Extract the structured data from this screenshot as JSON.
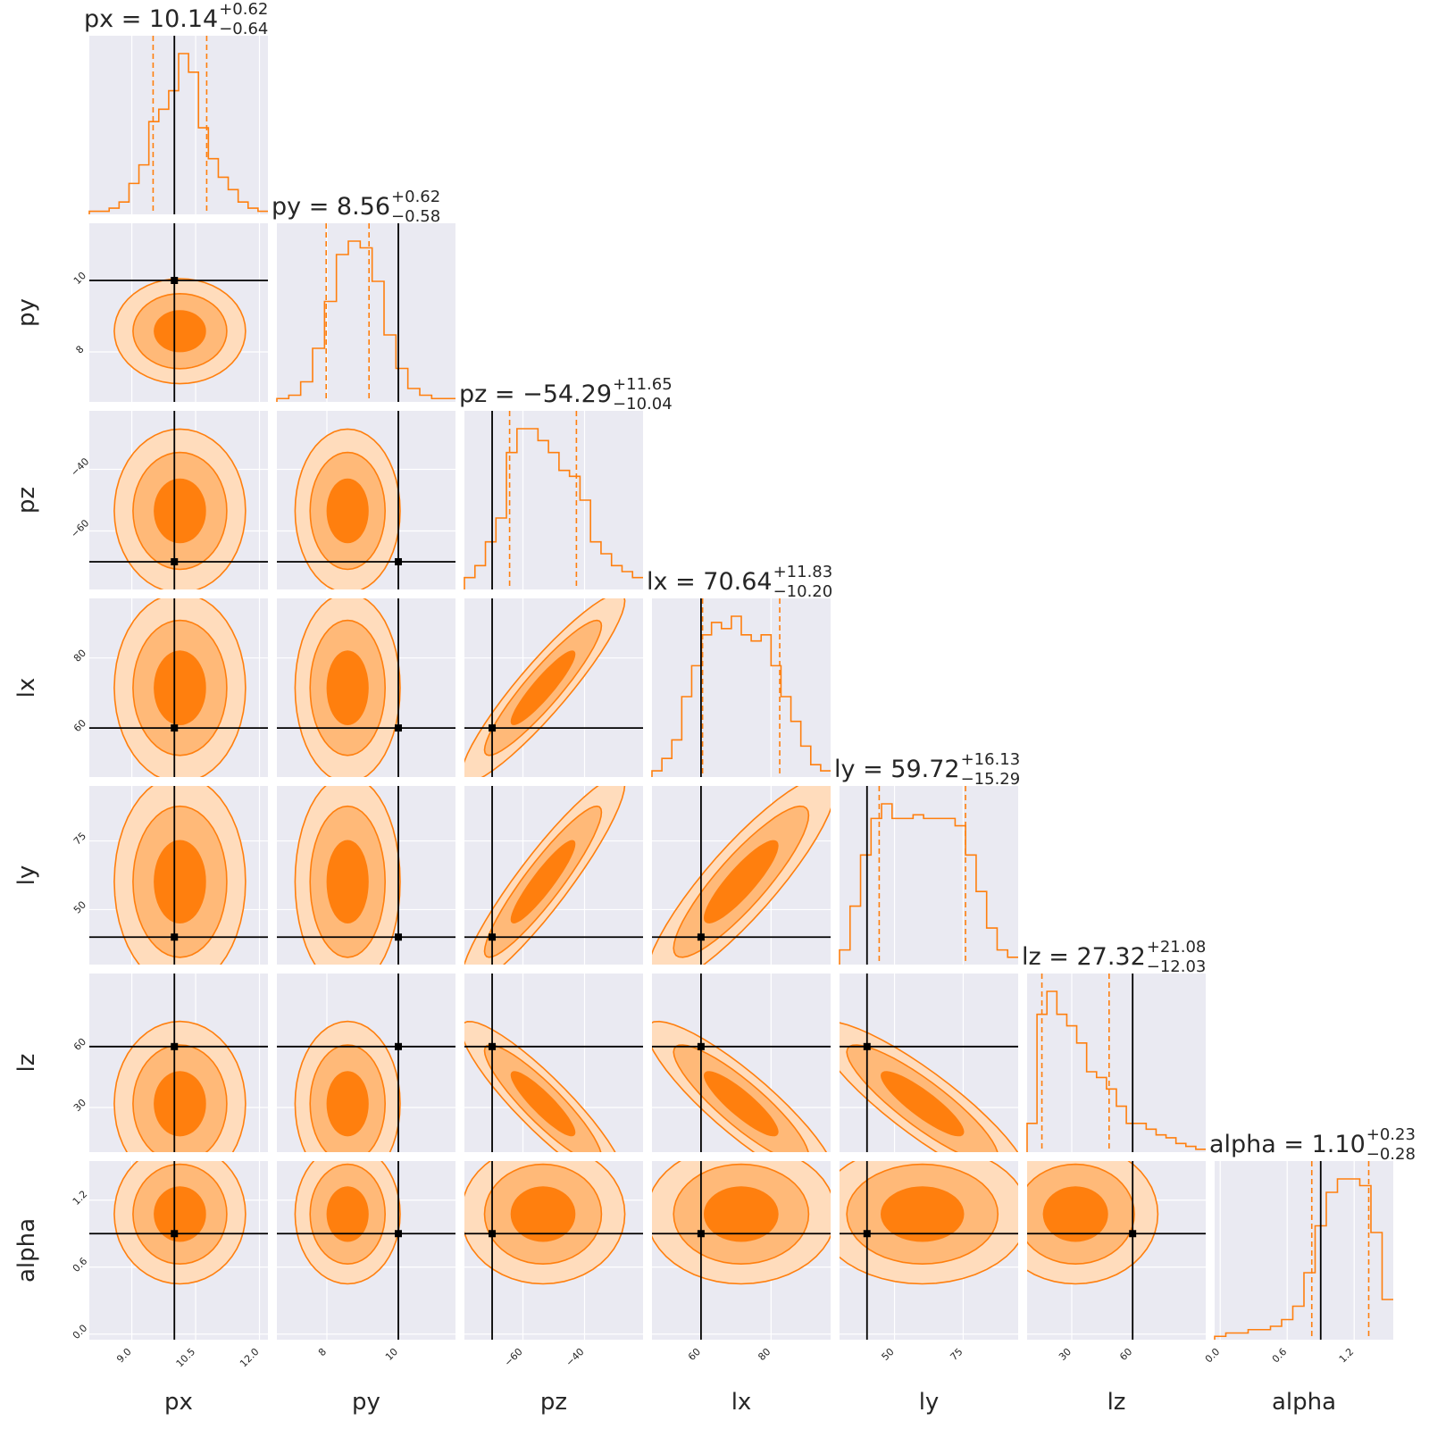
{
  "chart_data": {
    "type": "corner",
    "grid": true,
    "colors": {
      "line": "#ff7f0e",
      "level_fills": [
        "#ffdcbc",
        "#ffb978",
        "#ff7f0e"
      ],
      "panel_background": "#eaeaf2",
      "truth": "#000000"
    },
    "parameters": [
      {
        "name": "px",
        "label": "px",
        "range": [
          8.0,
          12.2
        ],
        "ticks": [
          9.0,
          10.5,
          12.0
        ],
        "tick_labels": [
          "9.0",
          "10.5",
          "12.0"
        ],
        "truth": 10.0,
        "title": {
          "main": "px = 10.14",
          "plus": "+0.62",
          "minus": "−0.64"
        },
        "quantiles": [
          9.5,
          10.76
        ],
        "hist": [
          1,
          1,
          2,
          4,
          10,
          16,
          30,
          34,
          40,
          52,
          46,
          28,
          18,
          12,
          8,
          4,
          2,
          1
        ]
      },
      {
        "name": "py",
        "label": "py",
        "range": [
          6.6,
          11.6
        ],
        "ticks": [
          8,
          10
        ],
        "tick_labels": [
          "8",
          "10"
        ],
        "truth": 10.0,
        "title": {
          "main": "py = 8.56",
          "plus": "+0.62",
          "minus": "−0.58"
        },
        "quantiles": [
          7.98,
          9.18
        ],
        "hist": [
          1,
          2,
          6,
          16,
          30,
          44,
          48,
          46,
          36,
          20,
          10,
          4,
          2,
          1,
          1
        ]
      },
      {
        "name": "pz",
        "label": "pz",
        "range": [
          -79,
          -21
        ],
        "ticks": [
          -60,
          -40
        ],
        "tick_labels": [
          "−60",
          "−40"
        ],
        "truth": -70.0,
        "title": {
          "main": "pz = −54.29",
          "plus": "+11.65",
          "minus": "−10.04"
        },
        "quantiles": [
          -64.33,
          -42.64
        ],
        "hist": [
          4,
          8,
          16,
          24,
          46,
          54,
          54,
          50,
          46,
          40,
          38,
          30,
          16,
          12,
          8,
          6,
          4
        ]
      },
      {
        "name": "lx",
        "label": "lx",
        "range": [
          46,
          97
        ],
        "ticks": [
          60,
          80
        ],
        "tick_labels": [
          "60",
          "80"
        ],
        "truth": 60.0,
        "title": {
          "main": "lx = 70.64",
          "plus": "+11.83",
          "minus": "−10.20"
        },
        "quantiles": [
          60.44,
          82.47
        ],
        "hist": [
          2,
          6,
          12,
          26,
          36,
          46,
          50,
          48,
          52,
          46,
          44,
          46,
          36,
          26,
          18,
          10,
          4,
          2
        ]
      },
      {
        "name": "ly",
        "label": "ly",
        "range": [
          30,
          95
        ],
        "ticks": [
          50,
          75
        ],
        "tick_labels": [
          "50",
          "75"
        ],
        "truth": 40.0,
        "title": {
          "main": "ly = 59.72",
          "plus": "+16.13",
          "minus": "−15.29"
        },
        "quantiles": [
          44.43,
          75.85
        ],
        "hist": [
          4,
          16,
          30,
          40,
          44,
          40,
          40,
          41,
          40,
          40,
          40,
          38,
          30,
          20,
          10,
          4,
          2
        ]
      },
      {
        "name": "lz",
        "label": "lz",
        "range": [
          8,
          96
        ],
        "ticks": [
          30,
          60
        ],
        "tick_labels": [
          "30",
          "60"
        ],
        "truth": 60.0,
        "title": {
          "main": "lz = 27.32",
          "plus": "+21.08",
          "minus": "−12.03"
        },
        "quantiles": [
          15.29,
          48.4
        ],
        "hist": [
          10,
          48,
          56,
          48,
          44,
          38,
          28,
          26,
          22,
          16,
          10,
          10,
          8,
          6,
          5,
          3,
          2,
          1
        ]
      },
      {
        "name": "alpha",
        "label": "alpha",
        "range": [
          -0.05,
          1.55
        ],
        "ticks": [
          0.0,
          0.6,
          1.2
        ],
        "tick_labels": [
          "0.0",
          "0.6",
          "1.2"
        ],
        "truth": 0.9,
        "title": {
          "main": "alpha = 1.10",
          "plus": "+0.23",
          "minus": "−0.28"
        },
        "quantiles": [
          0.82,
          1.33
        ],
        "hist": [
          1,
          2,
          2,
          3,
          3,
          4,
          6,
          10,
          20,
          34,
          44,
          48,
          48,
          46,
          32,
          12
        ]
      }
    ],
    "contour_levels": [
      "outer",
      "middle",
      "inner"
    ]
  }
}
